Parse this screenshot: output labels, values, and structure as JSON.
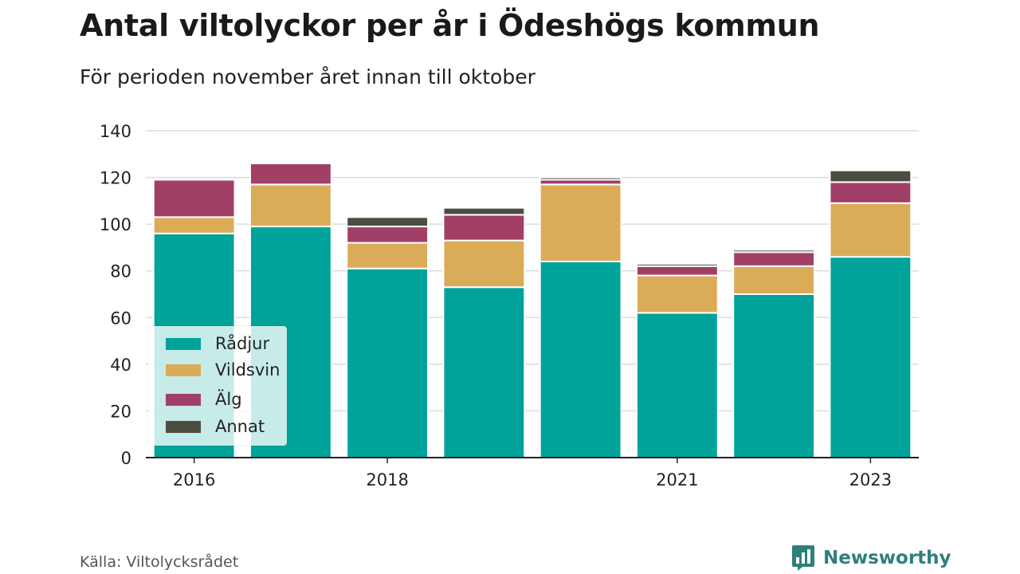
{
  "title": "Antal viltolyckor per år i Ödeshögs kommun",
  "subtitle": "För perioden november året innan till oktober",
  "source": "Källa: Viltolycksrådet",
  "brand": "Newsworthy",
  "colors": {
    "radjur": "#00a39a",
    "vildsvin": "#dbac58",
    "alg": "#a13f66",
    "annat": "#4a4e40",
    "grid": "#dcdcdc",
    "axis": "#222222",
    "brand": "#2f7f7b"
  },
  "legend": [
    {
      "label": "Rådjur",
      "color": "#00a39a"
    },
    {
      "label": "Vildsvin",
      "color": "#dbac58"
    },
    {
      "label": "Älg",
      "color": "#a13f66"
    },
    {
      "label": "Annat",
      "color": "#4a4e40"
    }
  ],
  "chart_data": {
    "type": "bar",
    "stacked": true,
    "title": "Antal viltolyckor per år i Ödeshögs kommun",
    "subtitle": "För perioden november året innan till oktober",
    "categories": [
      "2016",
      "2017",
      "2018",
      "2019",
      "2020",
      "2021",
      "2022",
      "2023"
    ],
    "x_tick_labels": [
      "2016",
      "2018",
      "2021",
      "2023"
    ],
    "y_ticks": [
      0,
      20,
      40,
      60,
      80,
      100,
      120,
      140
    ],
    "ylim": [
      0,
      140
    ],
    "grid": true,
    "legend_position": "bottom-left",
    "series": [
      {
        "name": "Rådjur",
        "color": "#00a39a",
        "values": [
          96,
          99,
          81,
          73,
          84,
          62,
          70,
          86
        ]
      },
      {
        "name": "Vildsvin",
        "color": "#dbac58",
        "values": [
          7,
          18,
          11,
          20,
          33,
          16,
          12,
          23
        ]
      },
      {
        "name": "Älg",
        "color": "#a13f66",
        "values": [
          16,
          9,
          7,
          11,
          2,
          4,
          6,
          9
        ]
      },
      {
        "name": "Annat",
        "color": "#4a4e40",
        "values": [
          0,
          0,
          4,
          3,
          1,
          1,
          1,
          5
        ]
      }
    ]
  }
}
